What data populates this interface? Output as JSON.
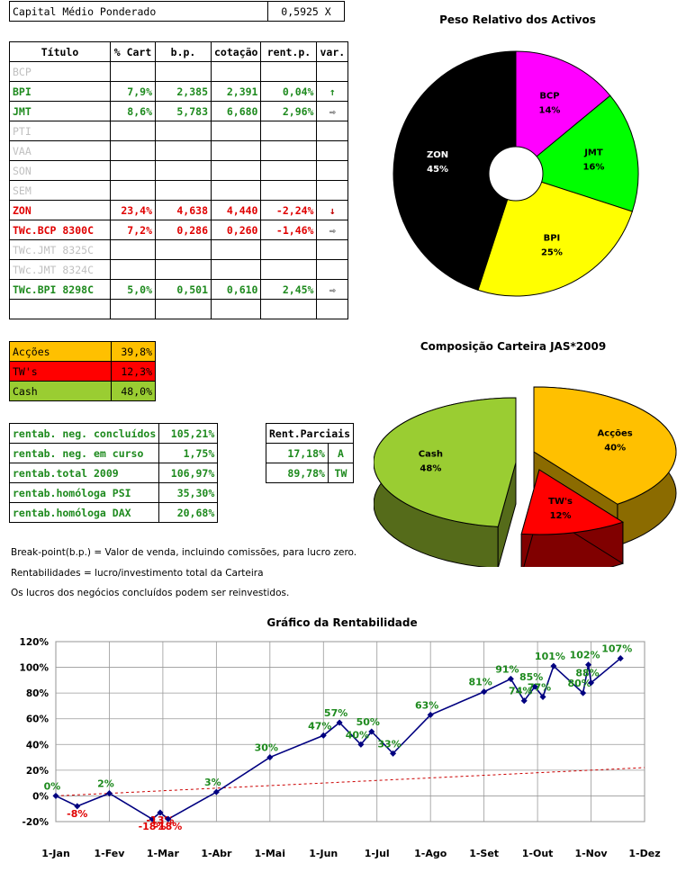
{
  "capital": {
    "label": "Capital Médio Ponderado",
    "value": "0,5925 X"
  },
  "holdings": {
    "headers": [
      "Título",
      "% Cart",
      "b.p.",
      "cotação",
      "rent.p.",
      "var."
    ],
    "rows": [
      {
        "name": "BCP",
        "pct": "",
        "bp": "",
        "cot": "",
        "rent": "",
        "var": "",
        "style": "grey"
      },
      {
        "name": "BPI",
        "pct": "7,9%",
        "bp": "2,385",
        "cot": "2,391",
        "rent": "0,04%",
        "var": "↑",
        "style": "green"
      },
      {
        "name": "JMT",
        "pct": "8,6%",
        "bp": "5,783",
        "cot": "6,680",
        "rent": "2,96%",
        "var": "⇨",
        "style": "green"
      },
      {
        "name": "PTI",
        "pct": "",
        "bp": "",
        "cot": "",
        "rent": "",
        "var": "",
        "style": "grey"
      },
      {
        "name": "VAA",
        "pct": "",
        "bp": "",
        "cot": "",
        "rent": "",
        "var": "",
        "style": "grey"
      },
      {
        "name": "SON",
        "pct": "",
        "bp": "",
        "cot": "",
        "rent": "",
        "var": "",
        "style": "grey"
      },
      {
        "name": "SEM",
        "pct": "",
        "bp": "",
        "cot": "",
        "rent": "",
        "var": "",
        "style": "grey"
      },
      {
        "name": "ZON",
        "pct": "23,4%",
        "bp": "4,638",
        "cot": "4,440",
        "rent": "-2,24%",
        "var": "↓",
        "style": "red"
      },
      {
        "name": "TWc.BCP 8300C",
        "pct": "7,2%",
        "bp": "0,286",
        "cot": "0,260",
        "rent": "-1,46%",
        "var": "⇨",
        "style": "red"
      },
      {
        "name": "TWc.JMT 8325C",
        "pct": "",
        "bp": "",
        "cot": "",
        "rent": "",
        "var": "",
        "style": "grey"
      },
      {
        "name": "TWc.JMT 8324C",
        "pct": "",
        "bp": "",
        "cot": "",
        "rent": "",
        "var": "",
        "style": "grey"
      },
      {
        "name": "TWc.BPI 8298C",
        "pct": "5,0%",
        "bp": "0,501",
        "cot": "0,610",
        "rent": "2,45%",
        "var": "⇨",
        "style": "green"
      },
      {
        "name": "",
        "pct": "",
        "bp": "",
        "cot": "",
        "rent": "",
        "var": "",
        "style": ""
      }
    ]
  },
  "allocation": [
    {
      "label": "Acções",
      "value": "39,8%",
      "color": "#ffc000"
    },
    {
      "label": "TW's",
      "value": "12,3%",
      "color": "#ff0000"
    },
    {
      "label": "Cash",
      "value": "48,0%",
      "color": "#9acd32"
    }
  ],
  "returns": [
    {
      "label": "rentab. neg. concluídos",
      "value": "105,21%"
    },
    {
      "label": "rentab. neg. em curso",
      "value": "1,75%"
    },
    {
      "label": "rentab.total 2009",
      "value": "106,97%"
    },
    {
      "label": "rentab.homóloga PSI",
      "value": "35,30%"
    },
    {
      "label": "rentab.homóloga DAX",
      "value": "20,68%"
    }
  ],
  "partials": {
    "header": "Rent.Parciais",
    "rows": [
      {
        "value": "17,18%",
        "tag": "A"
      },
      {
        "value": "89,78%",
        "tag": "TW"
      }
    ]
  },
  "notes": [
    "Break-point(b.p.) = Valor de venda, incluindo comissões, para lucro zero.",
    "Rentabilidades = lucro/investimento total da Carteira",
    "Os lucros dos negócios concluídos podem ser reinvestidos."
  ],
  "chart_data": [
    {
      "type": "pie",
      "title": "Peso Relativo dos Activos",
      "donut": true,
      "slices": [
        {
          "label": "BCP",
          "value": 14,
          "text": "14%",
          "color": "#ff00ff"
        },
        {
          "label": "JMT",
          "value": 16,
          "text": "16%",
          "color": "#00ff00"
        },
        {
          "label": "BPI",
          "value": 25,
          "text": "25%",
          "color": "#ffff00"
        },
        {
          "label": "ZON",
          "value": 45,
          "text": "45%",
          "color": "#000000"
        }
      ]
    },
    {
      "type": "pie",
      "title": "Composição Carteira JAS*2009",
      "three_d": true,
      "slices": [
        {
          "label": "Acções",
          "value": 40,
          "text": "40%",
          "color": "#ffc000"
        },
        {
          "label": "TW's",
          "value": 12,
          "text": "12%",
          "color": "#ff0000"
        },
        {
          "label": "Cash",
          "value": 48,
          "text": "48%",
          "color": "#9acd32"
        }
      ]
    },
    {
      "type": "line",
      "title": "Gráfico da Rentabilidade",
      "x_ticks": [
        "1-Jan",
        "1-Fev",
        "1-Mar",
        "1-Abr",
        "1-Mai",
        "1-Jun",
        "1-Jul",
        "1-Ago",
        "1-Set",
        "1-Out",
        "1-Nov",
        "1-Dez"
      ],
      "y_ticks": [
        "120%",
        "100%",
        "80%",
        "60%",
        "40%",
        "20%",
        "0%",
        "-20%"
      ],
      "ylim": [
        -20,
        120
      ],
      "series": [
        {
          "color": "#000080",
          "points": [
            [
              0,
              0,
              "0%"
            ],
            [
              0.4,
              -8,
              "-8%"
            ],
            [
              1,
              2,
              "2%"
            ],
            [
              1.8,
              -18,
              "-18%"
            ],
            [
              1.95,
              -13,
              "-13%"
            ],
            [
              2.1,
              -18,
              "-18%"
            ],
            [
              3,
              3,
              "3%"
            ],
            [
              4,
              30,
              "30%"
            ],
            [
              5,
              47,
              "47%"
            ],
            [
              5.3,
              57,
              "57%"
            ],
            [
              5.7,
              40,
              "40%"
            ],
            [
              5.9,
              50,
              "50%"
            ],
            [
              6.3,
              33,
              "33%"
            ],
            [
              7,
              63,
              "63%"
            ],
            [
              8,
              81,
              "81%"
            ],
            [
              8.5,
              91,
              "91%"
            ],
            [
              8.75,
              74,
              "74%"
            ],
            [
              8.95,
              85,
              "85%"
            ],
            [
              9.1,
              77,
              "77%"
            ],
            [
              9.3,
              101,
              "101%"
            ],
            [
              9.85,
              80,
              "80%"
            ],
            [
              9.95,
              102,
              "102%"
            ],
            [
              10.0,
              88,
              "88%"
            ],
            [
              10.55,
              107,
              "107%"
            ]
          ]
        }
      ],
      "trend": {
        "color": "#cc0000",
        "from": [
          0,
          0
        ],
        "to": [
          11,
          22
        ]
      }
    }
  ]
}
